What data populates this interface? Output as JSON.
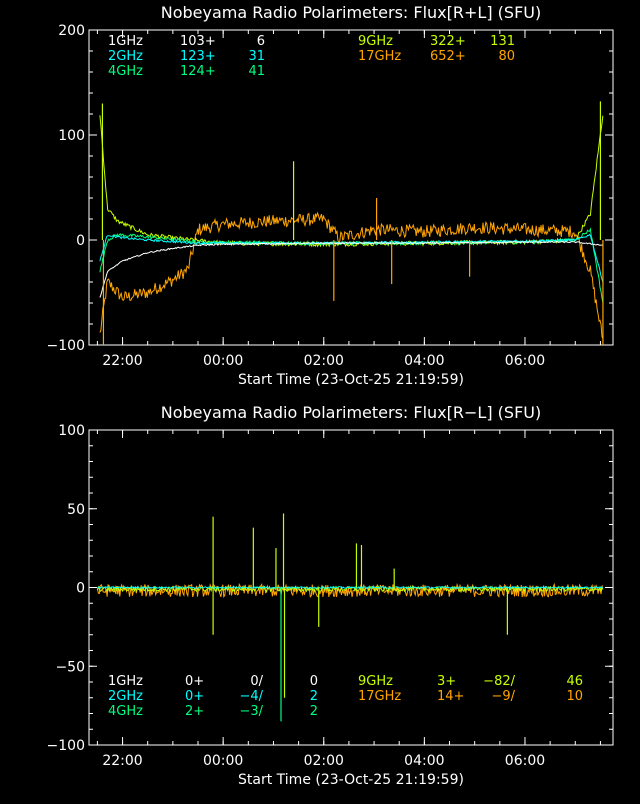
{
  "colors": {
    "background": "#000000",
    "axis": "#ffffff",
    "1GHz": "#ffffff",
    "2GHz": "#00ffff",
    "4GHz": "#00ff7f",
    "9GHz": "#c8ff00",
    "17GHz": "#ffa500"
  },
  "chart_data": [
    {
      "type": "line",
      "title": "Nobeyama Radio Polarimeters: Flux[R+L] (SFU)",
      "xlabel": "Start Time (23-Oct-25 21:19:59)",
      "ylabel": "",
      "xlim": [
        21.333,
        31.75
      ],
      "ylim": [
        -100,
        200
      ],
      "xticks": [
        "22:00",
        "00:00",
        "02:00",
        "04:00",
        "06:00"
      ],
      "xtick_hours": [
        22,
        24,
        26,
        28,
        30
      ],
      "yticks": [
        -100,
        0,
        100,
        200
      ],
      "ytick_labels": [
        "−100",
        "0",
        "100",
        "200"
      ],
      "legend": [
        {
          "name": "1GHz",
          "v1": "103+",
          "v2": "6",
          "color": "#ffffff"
        },
        {
          "name": "2GHz",
          "v1": "123+",
          "v2": "31",
          "color": "#00ffff"
        },
        {
          "name": "4GHz",
          "v1": "124+",
          "v2": "41",
          "color": "#00ff7f"
        },
        {
          "name": "9GHz",
          "v1": "322+",
          "v2": "131",
          "color": "#c8ff00"
        },
        {
          "name": "17GHz",
          "v1": "652+",
          "v2": "80",
          "color": "#ffa500"
        }
      ],
      "series": [
        {
          "name": "17GHz",
          "color": "#ffa500",
          "noise": 6,
          "x": [
            21.55,
            21.7,
            22.0,
            22.5,
            23.0,
            23.3,
            23.5,
            24.0,
            25.0,
            26.0,
            26.3,
            27.0,
            28.0,
            29.0,
            30.0,
            31.0,
            31.3,
            31.55
          ],
          "y": [
            -90,
            -40,
            -55,
            -50,
            -38,
            -28,
            10,
            15,
            18,
            20,
            2,
            10,
            8,
            12,
            10,
            8,
            -30,
            -95
          ]
        },
        {
          "name": "9GHz",
          "color": "#c8ff00",
          "noise": 2,
          "x": [
            21.55,
            21.7,
            21.9,
            22.5,
            23.0,
            24.0,
            26.0,
            28.0,
            30.0,
            31.0,
            31.3,
            31.55
          ],
          "y": [
            120,
            30,
            18,
            5,
            2,
            -3,
            -4,
            -3,
            -2,
            0,
            25,
            120
          ]
        },
        {
          "name": "4GHz",
          "color": "#00ff7f",
          "noise": 1.5,
          "x": [
            21.55,
            21.7,
            21.9,
            22.5,
            23.5,
            26.0,
            28.0,
            30.0,
            31.0,
            31.3,
            31.55
          ],
          "y": [
            -30,
            0,
            5,
            3,
            -2,
            -3,
            -3,
            -2,
            0,
            10,
            -60
          ]
        },
        {
          "name": "2GHz",
          "color": "#00ffff",
          "noise": 1,
          "x": [
            21.55,
            21.7,
            22.0,
            22.5,
            23.5,
            26.0,
            28.0,
            30.0,
            31.0,
            31.3,
            31.55
          ],
          "y": [
            -20,
            5,
            2,
            0,
            -3,
            -3,
            -2,
            -1,
            0,
            5,
            -40
          ]
        },
        {
          "name": "1GHz",
          "color": "#ffffff",
          "noise": 0.6,
          "x": [
            21.55,
            21.7,
            22.0,
            22.5,
            23.0,
            23.5,
            24.0,
            26.0,
            28.0,
            30.0,
            31.0,
            31.55
          ],
          "y": [
            -55,
            -30,
            -20,
            -12,
            -8,
            -5,
            -4,
            -3,
            -3,
            -2,
            -2,
            -5
          ]
        }
      ],
      "spikes": [
        {
          "x": 21.6,
          "y": 130,
          "color": "#c8ff00"
        },
        {
          "x": 21.62,
          "y": -100,
          "color": "#ffa500"
        },
        {
          "x": 25.4,
          "y": 75,
          "color": "#c8ff00"
        },
        {
          "x": 27.05,
          "y": 40,
          "color": "#ffa500"
        },
        {
          "x": 26.2,
          "y": -58,
          "color": "#ffa500"
        },
        {
          "x": 27.35,
          "y": -42,
          "color": "#ffa500"
        },
        {
          "x": 28.9,
          "y": -35,
          "color": "#ffa500"
        },
        {
          "x": 31.5,
          "y": 132,
          "color": "#c8ff00"
        },
        {
          "x": 31.55,
          "y": -100,
          "color": "#ffa500"
        }
      ]
    },
    {
      "type": "line",
      "title": "Nobeyama Radio Polarimeters: Flux[R−L] (SFU)",
      "xlabel": "Start Time (23-Oct-25 21:19:59)",
      "ylabel": "",
      "xlim": [
        21.333,
        31.75
      ],
      "ylim": [
        -100,
        100
      ],
      "xticks": [
        "22:00",
        "00:00",
        "02:00",
        "04:00",
        "06:00"
      ],
      "xtick_hours": [
        22,
        24,
        26,
        28,
        30
      ],
      "yticks": [
        -100,
        -50,
        0,
        50,
        100
      ],
      "ytick_labels": [
        "−100",
        "−50",
        "0",
        "50",
        "100"
      ],
      "legend": [
        {
          "name": "1GHz",
          "v1": "0+",
          "v2": "0/",
          "v3": "0",
          "color": "#ffffff"
        },
        {
          "name": "2GHz",
          "v1": "0+",
          "v2": "−4/",
          "v3": "2",
          "color": "#00ffff"
        },
        {
          "name": "4GHz",
          "v1": "2+",
          "v2": "−3/",
          "v3": "2",
          "color": "#00ff7f"
        },
        {
          "name": "9GHz",
          "v1": "3+",
          "v2": "−82/",
          "v3": "46",
          "color": "#c8ff00"
        },
        {
          "name": "17GHz",
          "v1": "14+",
          "v2": "−9/",
          "v3": "10",
          "color": "#ffa500"
        }
      ],
      "series": [
        {
          "name": "17GHz",
          "color": "#ffa500",
          "noise": 4,
          "x": [
            21.5,
            31.55
          ],
          "y": [
            -2,
            -2
          ]
        },
        {
          "name": "9GHz",
          "color": "#c8ff00",
          "noise": 1.5,
          "x": [
            21.5,
            31.55
          ],
          "y": [
            -1,
            -1
          ]
        },
        {
          "name": "2GHz",
          "color": "#00ffff",
          "noise": 0.5,
          "x": [
            21.5,
            31.55
          ],
          "y": [
            0,
            0
          ]
        }
      ],
      "spikes": [
        {
          "x": 23.8,
          "y": 45,
          "color": "#c8ff00"
        },
        {
          "x": 24.6,
          "y": 38,
          "color": "#c8ff00"
        },
        {
          "x": 25.05,
          "y": 25,
          "color": "#c8ff00"
        },
        {
          "x": 25.2,
          "y": 47,
          "color": "#c8ff00"
        },
        {
          "x": 25.15,
          "y": -85,
          "color": "#00ff7f"
        },
        {
          "x": 25.22,
          "y": -70,
          "color": "#c8ff00"
        },
        {
          "x": 25.9,
          "y": -25,
          "color": "#c8ff00"
        },
        {
          "x": 26.65,
          "y": 28,
          "color": "#c8ff00"
        },
        {
          "x": 26.75,
          "y": 27,
          "color": "#c8ff00"
        },
        {
          "x": 23.8,
          "y": -30,
          "color": "#c8ff00"
        },
        {
          "x": 29.65,
          "y": -30,
          "color": "#c8ff00"
        },
        {
          "x": 27.4,
          "y": 12,
          "color": "#c8ff00"
        }
      ]
    }
  ]
}
